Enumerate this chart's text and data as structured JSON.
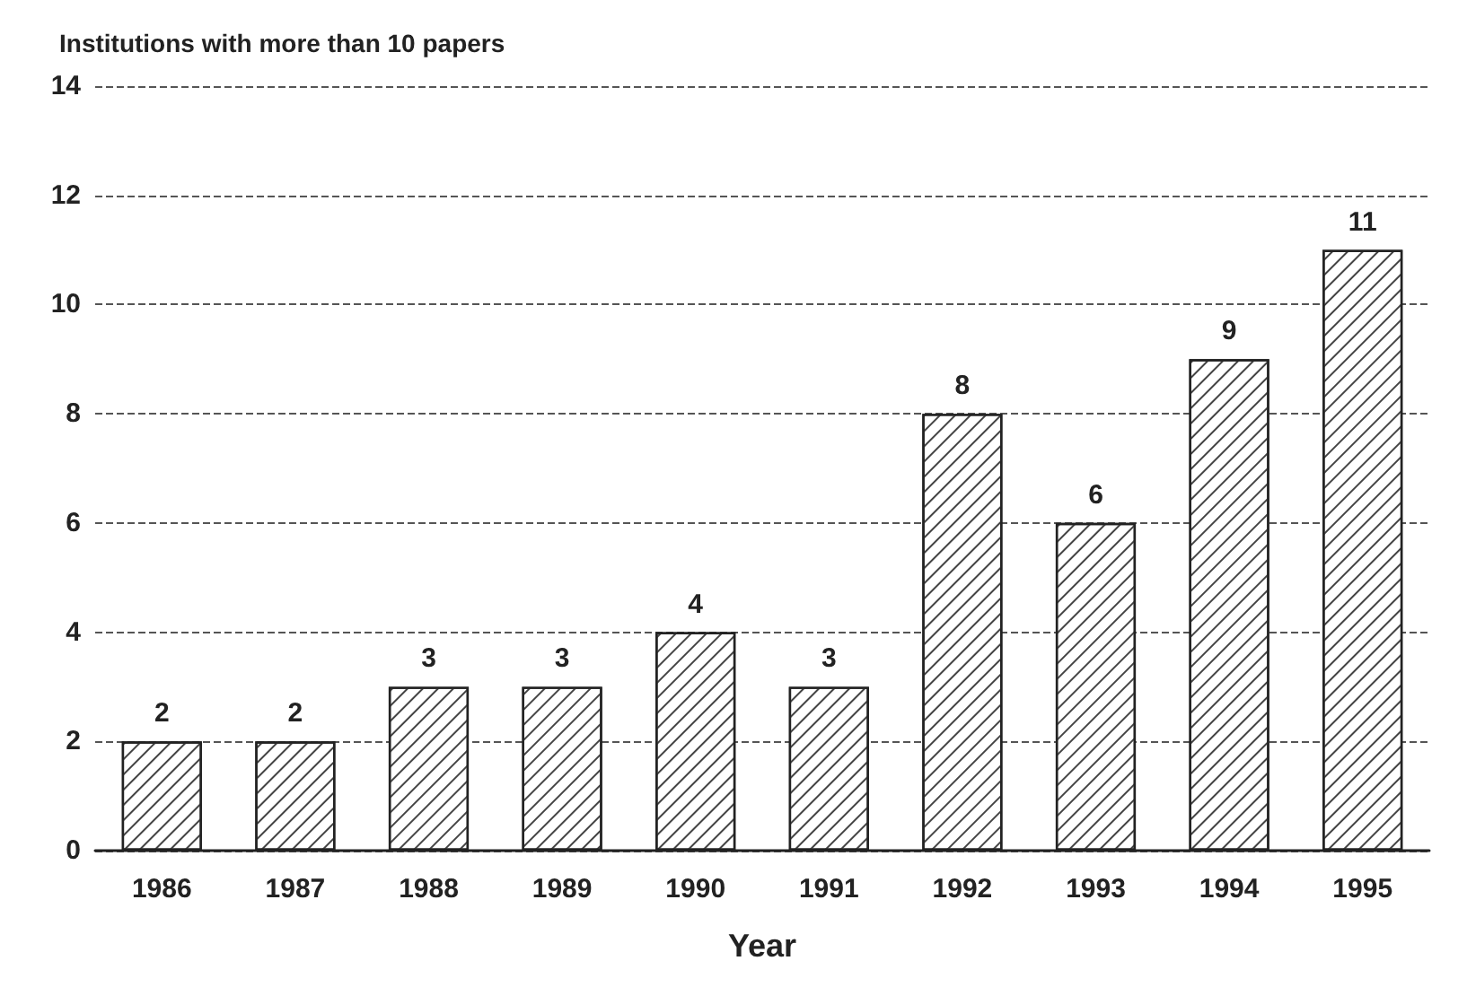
{
  "chart_data": {
    "type": "bar",
    "title": "Institutions with more than 10 papers",
    "xlabel": "Year",
    "categories": [
      "1986",
      "1987",
      "1988",
      "1989",
      "1990",
      "1991",
      "1992",
      "1993",
      "1994",
      "1995"
    ],
    "values": [
      2,
      2,
      3,
      3,
      4,
      3,
      8,
      6,
      9,
      11
    ],
    "color": "#ffffff",
    "ylim": [
      0,
      14
    ],
    "yticks": [
      0,
      2,
      4,
      6,
      8,
      10,
      12,
      14
    ],
    "grid": "y",
    "data_labels": true
  }
}
